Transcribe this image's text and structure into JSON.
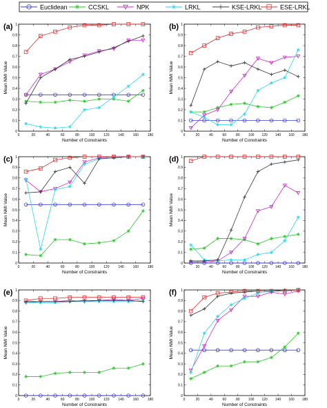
{
  "legend": [
    {
      "name": "Euclidean",
      "color": "#3a3ad6",
      "marker": "circle"
    },
    {
      "name": "CCSKL",
      "color": "#27c427",
      "marker": "star"
    },
    {
      "name": "NPK",
      "color": "#cc2bcc",
      "marker": "triangle-down"
    },
    {
      "name": "LRKL",
      "color": "#2ad6e8",
      "marker": "star"
    },
    {
      "name": "KSE-LRKL",
      "color": "#333333",
      "marker": "plus"
    },
    {
      "name": "ESE-LRKL",
      "color": "#e03030",
      "marker": "square"
    }
  ],
  "chart_data": [
    {
      "type": "line",
      "panel_label": "(a)",
      "xlabel": "Number of Constraints",
      "ylabel": "Mean NMI Value",
      "xlim": [
        0,
        180
      ],
      "ylim": [
        0,
        1
      ],
      "xticks": [
        "0",
        "20",
        "40",
        "60",
        "80",
        "100",
        "120",
        "140",
        "160",
        "180"
      ],
      "yticks": [
        "0",
        "0.1",
        "0.2",
        "0.3",
        "0.4",
        "0.5",
        "0.6",
        "0.7",
        "0.8",
        "0.9",
        "1"
      ],
      "x": [
        10,
        30,
        50,
        70,
        90,
        110,
        130,
        150,
        170
      ],
      "series": [
        {
          "name": "Euclidean",
          "values": [
            0.34,
            0.34,
            0.34,
            0.34,
            0.34,
            0.34,
            0.34,
            0.34,
            0.34
          ]
        },
        {
          "name": "CCSKL",
          "values": [
            0.28,
            0.27,
            0.27,
            0.29,
            0.28,
            0.3,
            0.3,
            0.28,
            0.38
          ]
        },
        {
          "name": "NPK",
          "values": [
            0.34,
            0.53,
            0.58,
            0.65,
            0.71,
            0.75,
            0.77,
            0.85,
            0.85
          ]
        },
        {
          "name": "LRKL",
          "values": [
            0.07,
            0.04,
            0.03,
            0.04,
            0.2,
            0.22,
            0.32,
            0.42,
            0.53
          ]
        },
        {
          "name": "KSE-LRKL",
          "values": [
            0.26,
            0.5,
            0.58,
            0.67,
            0.7,
            0.74,
            0.78,
            0.84,
            0.89
          ]
        },
        {
          "name": "ESE-LRKL",
          "values": [
            0.74,
            0.89,
            0.93,
            0.97,
            0.99,
            0.99,
            1.0,
            1.0,
            1.0
          ]
        }
      ]
    },
    {
      "type": "line",
      "panel_label": "(b)",
      "xlabel": "Number of Constraints",
      "ylabel": "Mean NMI Value",
      "xlim": [
        0,
        180
      ],
      "ylim": [
        0,
        1
      ],
      "xticks": [
        "0",
        "20",
        "40",
        "60",
        "80",
        "100",
        "120",
        "140",
        "160",
        "180"
      ],
      "yticks": [
        "0",
        "0.1",
        "0.2",
        "0.3",
        "0.4",
        "0.5",
        "0.6",
        "0.7",
        "0.8",
        "0.9",
        "1"
      ],
      "x": [
        10,
        30,
        50,
        70,
        90,
        110,
        130,
        150,
        170
      ],
      "series": [
        {
          "name": "Euclidean",
          "values": [
            0.1,
            0.1,
            0.1,
            0.1,
            0.1,
            0.1,
            0.1,
            0.1,
            0.1
          ]
        },
        {
          "name": "CCSKL",
          "values": [
            0.18,
            0.18,
            0.22,
            0.25,
            0.26,
            0.23,
            0.22,
            0.27,
            0.33
          ]
        },
        {
          "name": "NPK",
          "values": [
            0.03,
            0.15,
            0.2,
            0.37,
            0.52,
            0.68,
            0.64,
            0.69,
            0.7
          ]
        },
        {
          "name": "LRKL",
          "values": [
            0.18,
            0.13,
            0.06,
            0.06,
            0.16,
            0.38,
            0.45,
            0.5,
            0.76
          ]
        },
        {
          "name": "KSE-LRKL",
          "values": [
            0.24,
            0.58,
            0.65,
            0.61,
            0.64,
            0.58,
            0.53,
            0.57,
            0.51
          ]
        },
        {
          "name": "ESE-LRKL",
          "values": [
            0.73,
            0.8,
            0.87,
            0.91,
            0.93,
            0.97,
            0.98,
            0.99,
            0.99
          ]
        }
      ]
    },
    {
      "type": "line",
      "panel_label": "(c)",
      "xlabel": "Number of Constraints",
      "ylabel": "Mean NMI Value",
      "xlim": [
        0,
        180
      ],
      "ylim": [
        0,
        1
      ],
      "xticks": [
        "0",
        "20",
        "40",
        "60",
        "80",
        "100",
        "120",
        "140",
        "160",
        "180"
      ],
      "yticks": [
        "0",
        "0.1",
        "0.2",
        "0.3",
        "0.4",
        "0.5",
        "0.6",
        "0.7",
        "0.8",
        "0.9",
        "1"
      ],
      "x": [
        10,
        30,
        50,
        70,
        90,
        110,
        130,
        150,
        170
      ],
      "series": [
        {
          "name": "Euclidean",
          "values": [
            0.55,
            0.55,
            0.55,
            0.55,
            0.55,
            0.55,
            0.55,
            0.55,
            0.55
          ]
        },
        {
          "name": "CCSKL",
          "values": [
            0.08,
            0.07,
            0.22,
            0.22,
            0.18,
            0.19,
            0.21,
            0.3,
            0.49
          ]
        },
        {
          "name": "NPK",
          "values": [
            0.78,
            0.67,
            0.7,
            0.76,
            0.95,
            0.99,
            1.0,
            1.0,
            1.0
          ]
        },
        {
          "name": "LRKL",
          "values": [
            0.79,
            0.13,
            0.69,
            0.72,
            0.93,
            0.98,
            0.99,
            1.0,
            1.0
          ]
        },
        {
          "name": "KSE-LRKL",
          "values": [
            0.66,
            0.67,
            0.86,
            0.9,
            0.75,
            0.98,
            0.99,
            1.0,
            1.0
          ]
        },
        {
          "name": "ESE-LRKL",
          "values": [
            0.86,
            0.89,
            0.97,
            0.99,
            1.0,
            1.0,
            1.0,
            1.0,
            1.0
          ]
        }
      ]
    },
    {
      "type": "line",
      "panel_label": "(d)",
      "xlabel": "Number of Constraints",
      "ylabel": "Mean NMI Value",
      "xlim": [
        0,
        180
      ],
      "ylim": [
        0,
        1
      ],
      "xticks": [
        "0",
        "20",
        "40",
        "60",
        "80",
        "100",
        "120",
        "140",
        "160",
        "180"
      ],
      "yticks": [
        "0",
        "0.1",
        "0.2",
        "0.3",
        "0.4",
        "0.5",
        "0.6",
        "0.7",
        "0.8",
        "0.9",
        "1"
      ],
      "x": [
        10,
        30,
        50,
        70,
        90,
        110,
        130,
        150,
        170
      ],
      "series": [
        {
          "name": "Euclidean",
          "values": [
            0.0,
            0.0,
            0.0,
            0.0,
            0.0,
            0.0,
            0.0,
            0.0,
            0.0
          ]
        },
        {
          "name": "CCSKL",
          "values": [
            0.13,
            0.14,
            0.23,
            0.23,
            0.22,
            0.18,
            0.23,
            0.25,
            0.27
          ]
        },
        {
          "name": "NPK",
          "values": [
            0.01,
            0.01,
            0.02,
            0.1,
            0.23,
            0.49,
            0.53,
            0.73,
            0.66
          ]
        },
        {
          "name": "LRKL",
          "values": [
            0.17,
            0.03,
            0.02,
            0.03,
            0.03,
            0.08,
            0.1,
            0.21,
            0.43
          ]
        },
        {
          "name": "KSE-LRKL",
          "values": [
            0.02,
            0.02,
            0.03,
            0.31,
            0.62,
            0.86,
            0.93,
            0.95,
            0.97
          ]
        },
        {
          "name": "ESE-LRKL",
          "values": [
            0.96,
            1.0,
            1.0,
            1.0,
            1.0,
            1.0,
            1.0,
            1.0,
            1.0
          ]
        }
      ]
    },
    {
      "type": "line",
      "panel_label": "(e)",
      "xlabel": "Number of Constraints",
      "ylabel": "Mean NMI Value",
      "xlim": [
        0,
        180
      ],
      "ylim": [
        0,
        1
      ],
      "xticks": [
        "0",
        "20",
        "40",
        "60",
        "80",
        "100",
        "120",
        "140",
        "160",
        "180"
      ],
      "yticks": [
        "0",
        "0.1",
        "0.2",
        "0.3",
        "0.4",
        "0.5",
        "0.6",
        "0.7",
        "0.8",
        "0.9",
        "1"
      ],
      "x": [
        10,
        30,
        50,
        70,
        90,
        110,
        130,
        150,
        170
      ],
      "series": [
        {
          "name": "Euclidean",
          "values": [
            0.0,
            0.0,
            0.0,
            0.0,
            0.0,
            0.0,
            0.0,
            0.0,
            0.0
          ]
        },
        {
          "name": "CCSKL",
          "values": [
            0.18,
            0.18,
            0.21,
            0.22,
            0.22,
            0.22,
            0.26,
            0.26,
            0.3
          ]
        },
        {
          "name": "NPK",
          "values": [
            0.88,
            0.89,
            0.89,
            0.9,
            0.89,
            0.9,
            0.91,
            0.9,
            0.92
          ]
        },
        {
          "name": "LRKL",
          "values": [
            0.88,
            0.88,
            0.88,
            0.89,
            0.89,
            0.89,
            0.89,
            0.89,
            0.9
          ]
        },
        {
          "name": "KSE-LRKL",
          "values": [
            0.89,
            0.89,
            0.89,
            0.89,
            0.9,
            0.9,
            0.9,
            0.9,
            0.89
          ]
        },
        {
          "name": "ESE-LRKL",
          "values": [
            0.9,
            0.92,
            0.92,
            0.93,
            0.93,
            0.93,
            0.93,
            0.93,
            0.93
          ]
        }
      ]
    },
    {
      "type": "line",
      "panel_label": "(f)",
      "xlabel": "Number of Constraints",
      "ylabel": "Mean NMI Value",
      "xlim": [
        0,
        180
      ],
      "ylim": [
        0,
        1
      ],
      "xticks": [
        "0",
        "20",
        "40",
        "60",
        "80",
        "100",
        "120",
        "140",
        "160",
        "180"
      ],
      "yticks": [
        "0",
        "0.1",
        "0.2",
        "0.3",
        "0.4",
        "0.5",
        "0.6",
        "0.7",
        "0.8",
        "0.9",
        "1"
      ],
      "x": [
        10,
        30,
        50,
        70,
        90,
        110,
        130,
        150,
        170
      ],
      "series": [
        {
          "name": "Euclidean",
          "values": [
            0.43,
            0.43,
            0.43,
            0.43,
            0.43,
            0.43,
            0.43,
            0.43,
            0.43
          ]
        },
        {
          "name": "CCSKL",
          "values": [
            0.16,
            0.22,
            0.28,
            0.28,
            0.32,
            0.32,
            0.36,
            0.46,
            0.59
          ]
        },
        {
          "name": "NPK",
          "values": [
            0.24,
            0.47,
            0.71,
            0.81,
            0.94,
            0.94,
            0.98,
            0.96,
            0.99
          ]
        },
        {
          "name": "LRKL",
          "values": [
            0.22,
            0.59,
            0.75,
            0.86,
            0.92,
            0.97,
            0.99,
            0.99,
            1.0
          ]
        },
        {
          "name": "KSE-LRKL",
          "values": [
            0.76,
            0.82,
            0.94,
            0.97,
            0.98,
            0.99,
            0.99,
            1.0,
            1.0
          ]
        },
        {
          "name": "ESE-LRKL",
          "values": [
            0.8,
            0.93,
            0.97,
            0.98,
            0.99,
            0.99,
            0.99,
            0.99,
            1.0
          ]
        }
      ]
    }
  ]
}
